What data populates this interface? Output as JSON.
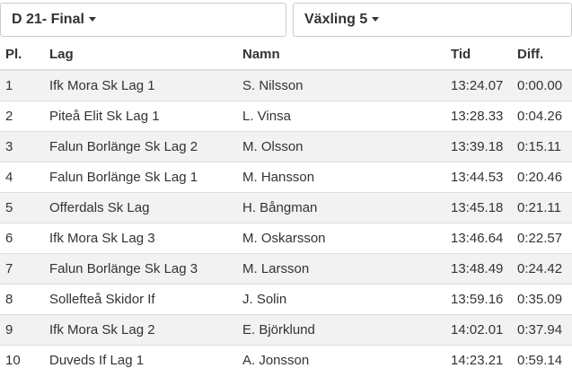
{
  "selectors": [
    {
      "label": "D 21- Final"
    },
    {
      "label": "Växling 5"
    }
  ],
  "table": {
    "columns": [
      "Pl.",
      "Lag",
      "Namn",
      "Tid",
      "Diff."
    ],
    "rows": [
      [
        "1",
        "Ifk Mora Sk Lag 1",
        "S. Nilsson",
        "13:24.07",
        "0:00.00"
      ],
      [
        "2",
        "Piteå Elit Sk Lag 1",
        "L. Vinsa",
        "13:28.33",
        "0:04.26"
      ],
      [
        "3",
        "Falun Borlänge Sk Lag 2",
        "M. Olsson",
        "13:39.18",
        "0:15.11"
      ],
      [
        "4",
        "Falun Borlänge Sk Lag 1",
        "M. Hansson",
        "13:44.53",
        "0:20.46"
      ],
      [
        "5",
        "Offerdals Sk Lag",
        "H. Bångman",
        "13:45.18",
        "0:21.11"
      ],
      [
        "6",
        "Ifk Mora Sk Lag 3",
        "M. Oskarsson",
        "13:46.64",
        "0:22.57"
      ],
      [
        "7",
        "Falun Borlänge Sk Lag 3",
        "M. Larsson",
        "13:48.49",
        "0:24.42"
      ],
      [
        "8",
        "Sollefteå Skidor If",
        "J. Solin",
        "13:59.16",
        "0:35.09"
      ],
      [
        "9",
        "Ifk Mora Sk Lag 2",
        "E. Björklund",
        "14:02.01",
        "0:37.94"
      ],
      [
        "10",
        "Duveds If Lag 1",
        "A. Jonsson",
        "14:23.21",
        "0:59.14"
      ]
    ]
  }
}
